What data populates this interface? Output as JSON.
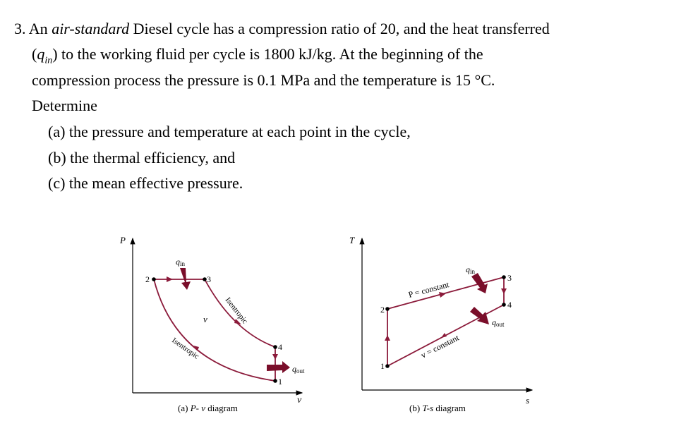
{
  "problem": {
    "number": "3.",
    "intro_pre": "An ",
    "intro_italic": "air-standard",
    "intro_post": " Diesel cycle has a compression ratio of 20, and the heat transferred",
    "line2_open": "(",
    "line2_q": "q",
    "line2_sub": "in",
    "line2_rest": ") to the working fluid per cycle is 1800 kJ/kg. At the beginning of the",
    "line3": "compression process the pressure is 0.1 MPa and the temperature is 15 °C.",
    "line4": "Determine",
    "parts": [
      "(a) the pressure and temperature at each point in the cycle,",
      "(b) the thermal efficiency, and",
      "(c) the mean effective pressure."
    ]
  },
  "pv_diagram": {
    "y_axis": "P",
    "x_axis": "v",
    "points": [
      "1",
      "2",
      "3",
      "4"
    ],
    "q_in": "q",
    "q_in_sub": "in",
    "q_out": "q",
    "q_out_sub": "out",
    "isentropic_upper": "Isentropic",
    "isentropic_lower": "Isentropic",
    "center_label": "v",
    "caption_pre": "(a) ",
    "caption_italic": "P- v",
    "caption_post": " diagram"
  },
  "ts_diagram": {
    "y_axis": "T",
    "x_axis": "s",
    "points": [
      "1",
      "2",
      "3",
      "4"
    ],
    "q_in": "q",
    "q_in_sub": "in",
    "q_out": "q",
    "q_out_sub": "out",
    "p_constant": "P = constant",
    "v_constant": "v = constant",
    "caption_pre": "(b) ",
    "caption_italic": "T-s",
    "caption_post": " diagram"
  },
  "colors": {
    "curve": "#8b1a3a",
    "arrow": "#7a0e2a"
  }
}
